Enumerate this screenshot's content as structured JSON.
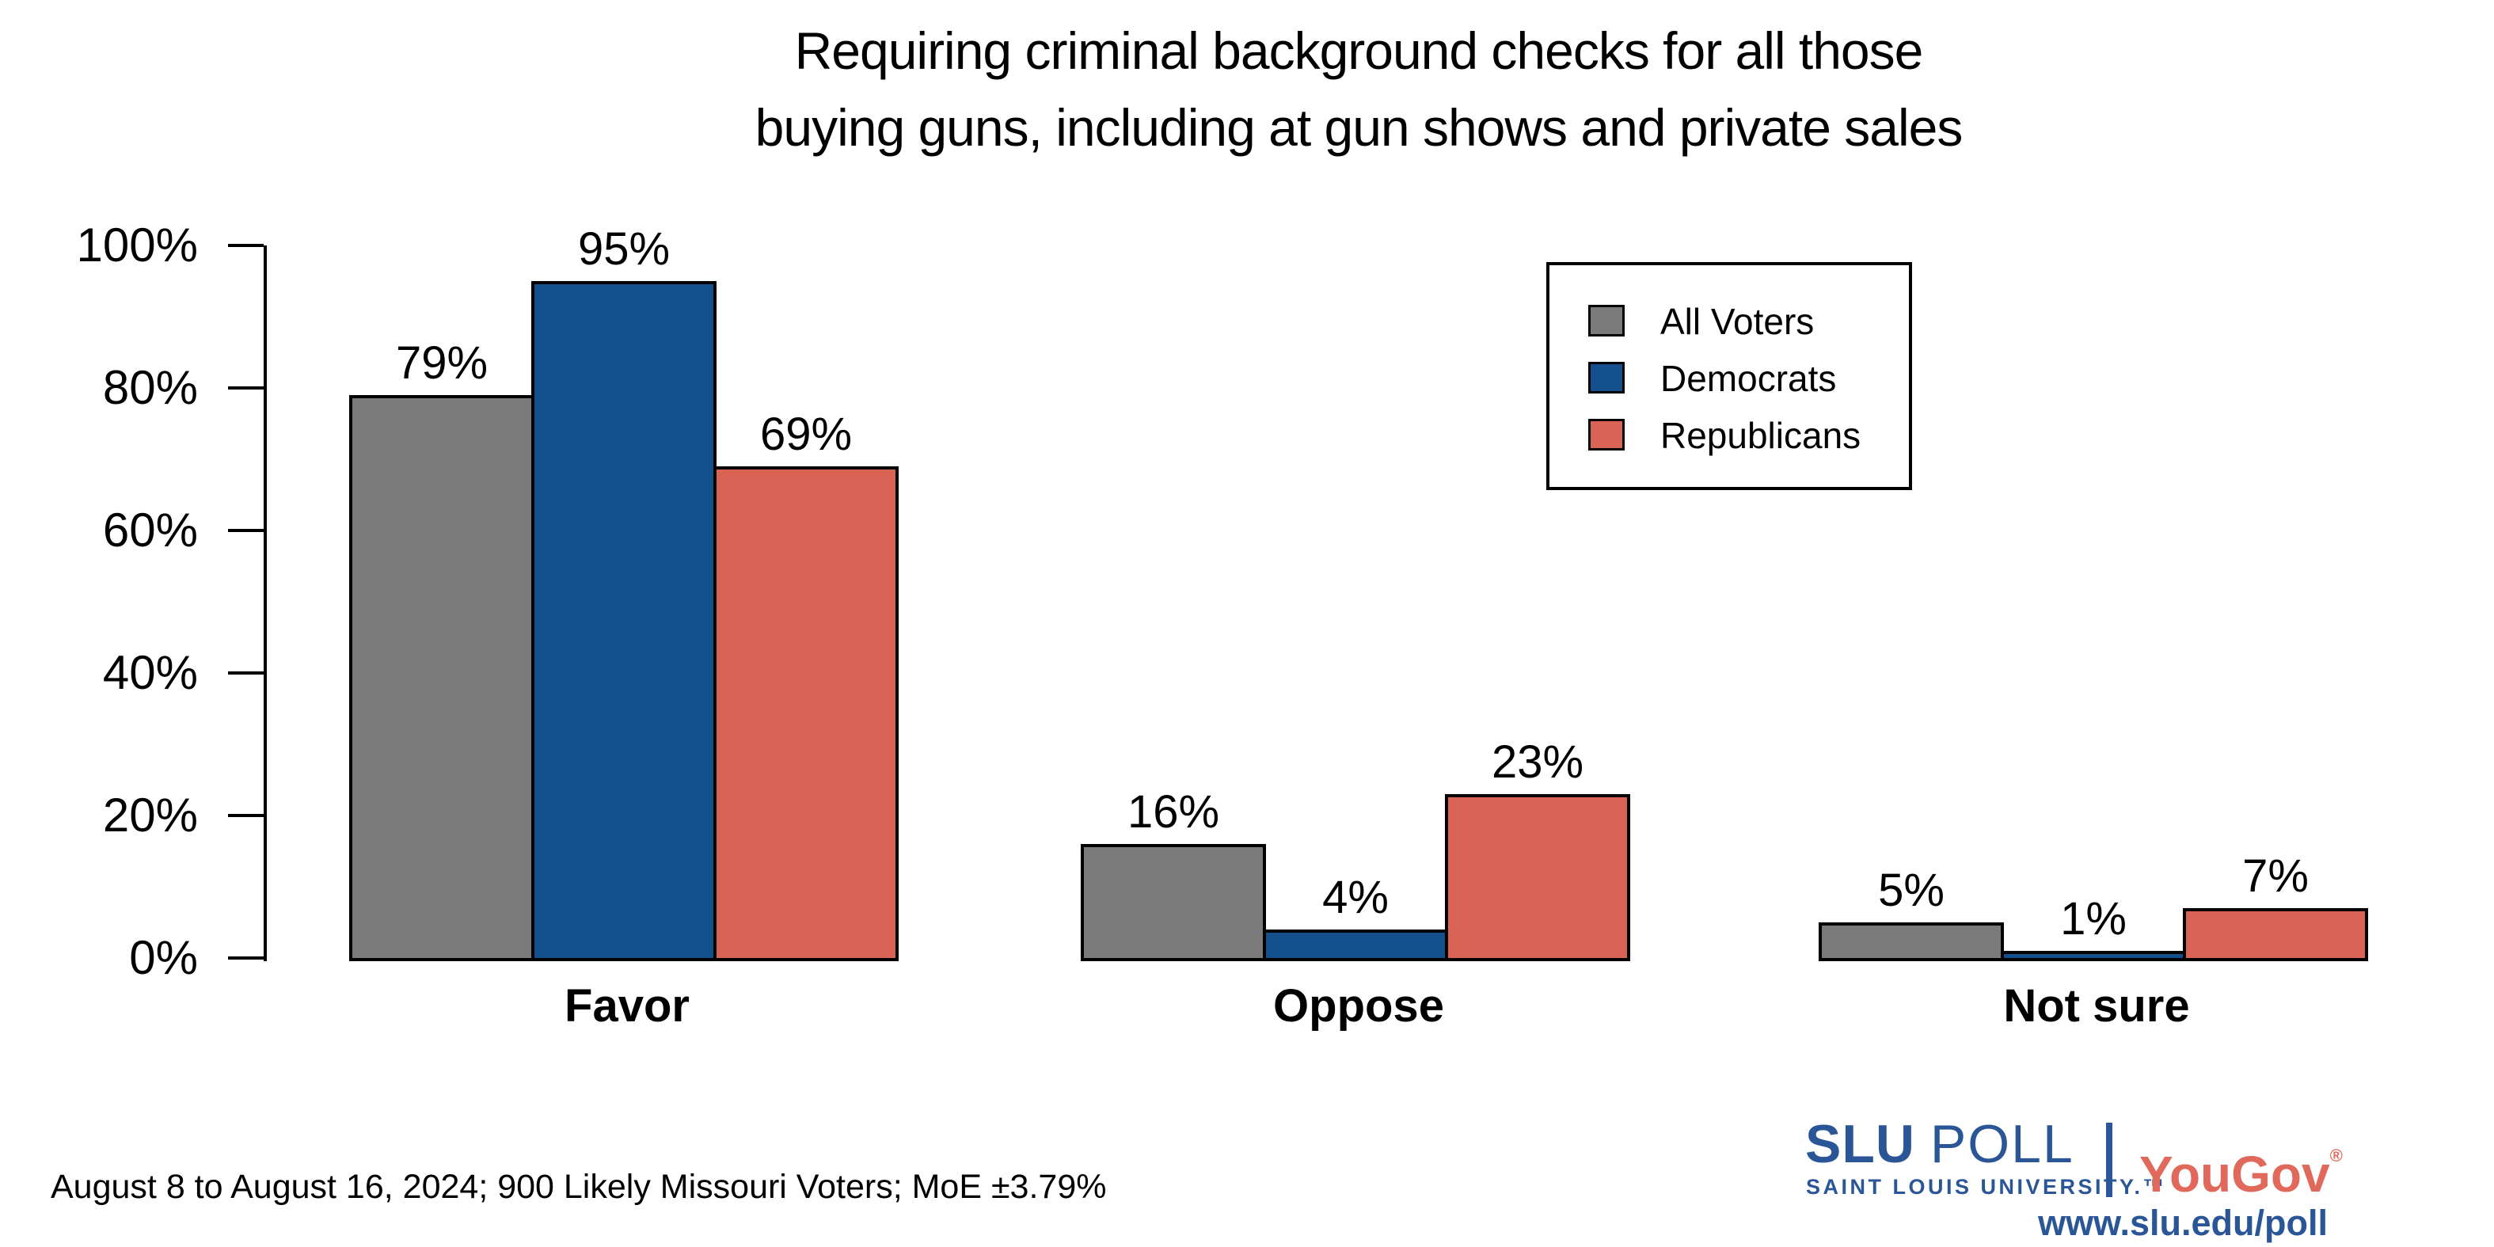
{
  "title": {
    "line1": "Requiring criminal background checks for all those",
    "line2": "buying guns, including at gun shows and private sales"
  },
  "chart_data": {
    "type": "bar",
    "categories": [
      "Favor",
      "Oppose",
      "Not sure"
    ],
    "series": [
      {
        "name": "All Voters",
        "color": "#7A7A7A",
        "values": [
          79,
          16,
          5
        ]
      },
      {
        "name": "Democrats",
        "color": "#14508E",
        "values": [
          95,
          4,
          1
        ]
      },
      {
        "name": "Republicans",
        "color": "#D96355",
        "values": [
          69,
          23,
          7
        ]
      }
    ],
    "value_labels": [
      [
        "79%",
        "16%",
        "5%"
      ],
      [
        "95%",
        "4%",
        "1%"
      ],
      [
        "69%",
        "23%",
        "7%"
      ]
    ],
    "value_suffix": "%",
    "ytick_labels": [
      "0%",
      "20%",
      "40%",
      "60%",
      "80%",
      "100%"
    ],
    "ytick_values": [
      0,
      20,
      40,
      60,
      80,
      100
    ],
    "ylim": [
      0,
      100
    ],
    "grid": false,
    "legend_position": "top-right",
    "bar_border_color": "#000000"
  },
  "footer": {
    "source_line": "August 8 to August 16, 2024; 900 Likely Missouri Voters; MoE ±3.79%"
  },
  "branding": {
    "slu": "SLU",
    "poll": "POLL",
    "slu_subtext": "SAINT LOUIS UNIVERSITY.™",
    "yougov": "YouGov",
    "registered_mark": "®",
    "url": "www.slu.edu/poll",
    "slu_blue": "#2A5697",
    "yougov_red": "#E0695C"
  }
}
